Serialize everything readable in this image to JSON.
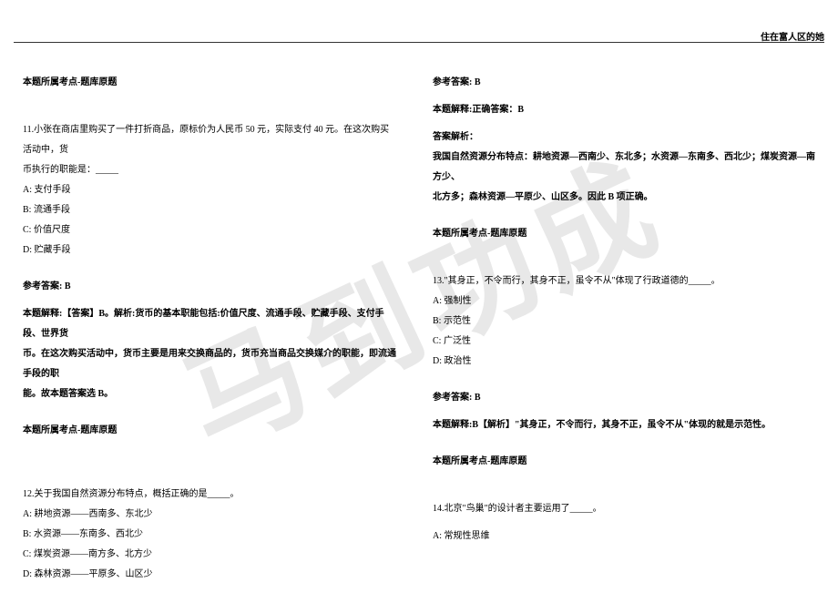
{
  "header": {
    "right_text": "住在富人区的她"
  },
  "watermark": "马到功成",
  "left": {
    "topic_label_1": "本题所属考点-题库原题",
    "q11": {
      "stem": "11.小张在商店里购买了一件打折商品，原标价为人民币 50 元，实际支付 40 元。在这次购买活动中，货",
      "stem2": "币执行的职能是：_____",
      "optA": "A: 支付手段",
      "optB": "B: 流通手段",
      "optC": "C: 价值尺度",
      "optD": "D: 贮藏手段",
      "ref": "参考答案: B",
      "expl1": "本题解释:【答案】B。解析:货币的基本职能包括:价值尺度、流通手段、贮藏手段、支付手段、世界货",
      "expl2": "币。在这次购买活动中，货币主要是用来交换商品的，货币充当商品交换媒介的职能，即流通手段的职",
      "expl3": "能。故本题答案选 B。"
    },
    "topic_label_2": "本题所属考点-题库原题",
    "q12": {
      "stem": "12.关于我国自然资源分布特点，概括正确的是_____。",
      "optA": "A: 耕地资源——西南多、东北少",
      "optB": "B: 水资源——东南多、西北少",
      "optC": "C: 煤炭资源——南方多、北方少",
      "optD": "D: 森林资源——平原多、山区少"
    }
  },
  "right": {
    "q12ans": {
      "ref": "参考答案: B",
      "correct": "本题解释:正确答案：B",
      "parse_label": "答案解析：",
      "parse1": "我国自然资源分布特点：耕地资源—西南少、东北多；水资源—东南多、西北少；煤炭资源—南方少、",
      "parse2": "北方多；森林资源—平原少、山区多。因此 B 项正确。"
    },
    "topic_label_3": "本题所属考点-题库原题",
    "q13": {
      "stem": "13.\"其身正，不令而行，其身不正，虽令不从\"体现了行政道德的_____。",
      "optA": "A: 强制性",
      "optB": "B: 示范性",
      "optC": "C: 广泛性",
      "optD": "D: 政治性",
      "ref": "参考答案: B",
      "expl": "本题解释:B【解析】\"其身正，不令而行，其身不正，虽令不从\"体现的就是示范性。"
    },
    "topic_label_4": "本题所属考点-题库原题",
    "q14": {
      "stem": "14.北京\"鸟巢\"的设计者主要运用了_____。",
      "optA": " A: 常规性思维"
    }
  }
}
